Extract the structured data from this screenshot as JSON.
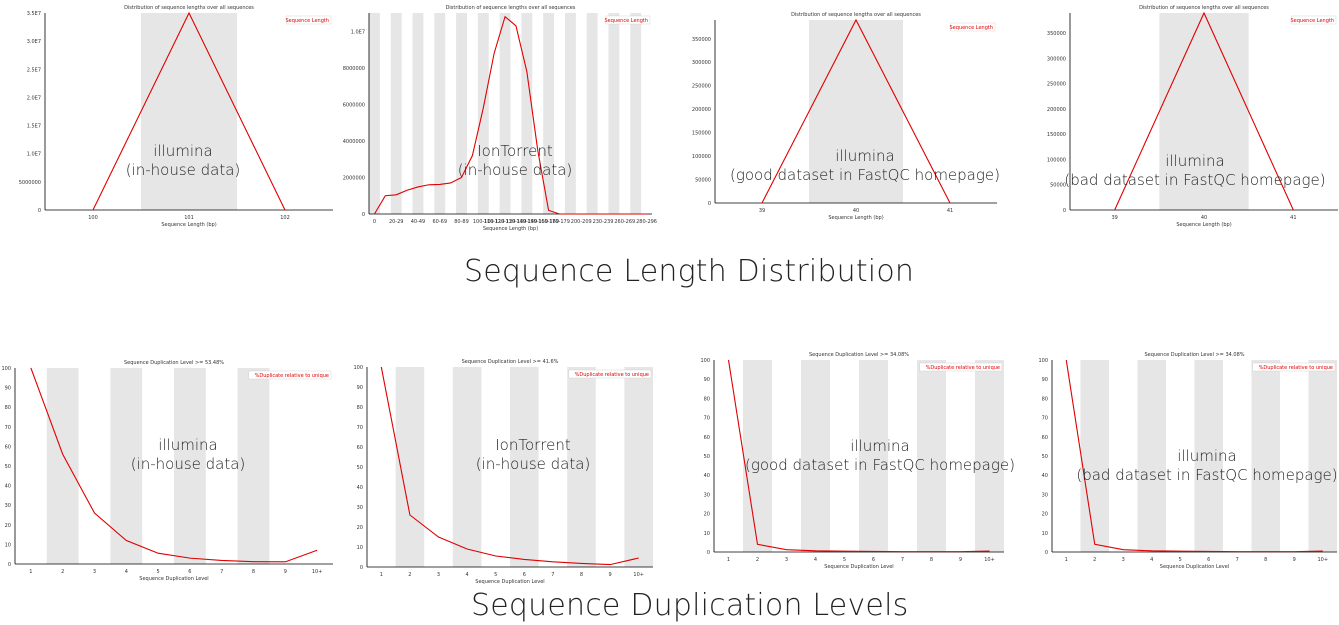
{
  "section_titles": {
    "length": "Sequence Length Distribution",
    "duplication": "Sequence Duplication Levels"
  },
  "chart_data": [
    {
      "id": "len-illumina-inhouse",
      "type": "line",
      "title": "Distribution of sequence lengths over all sequences",
      "xlabel": "Sequence Length (bp)",
      "legend": "Sequence Length",
      "legend_position": "top-right",
      "annotation": [
        "illumina",
        "(in-house data)"
      ],
      "x_categories": [
        "100",
        "101",
        "102"
      ],
      "y_ticks": [
        0,
        5000000,
        10000000,
        15000000,
        20000000,
        25000000,
        30000000,
        35000000
      ],
      "y_tick_labels": [
        "0",
        "5000000",
        "1.0E7",
        "1.5E7",
        "2.0E7",
        "2.5E7",
        "3.0E7",
        "3.5E7"
      ],
      "ylim": [
        0,
        35000000
      ],
      "shaded_bands": [
        1
      ],
      "values": [
        0,
        35000000,
        0
      ]
    },
    {
      "id": "len-iontorrent-inhouse",
      "type": "line",
      "title": "Distribution of sequence lengths over all sequences",
      "xlabel": "Sequence Length (bp)",
      "legend": "Sequence Length",
      "legend_position": "top-right",
      "annotation": [
        "IonTorrent",
        "(in-house data)"
      ],
      "x_categories": [
        "0",
        "",
        "20-29",
        "",
        "40-49",
        "",
        "60-69",
        "",
        "80-89",
        "",
        "100-109",
        "110-119",
        "120-129",
        "130-139",
        "140-149",
        "150-159",
        "160-169",
        "170-179",
        "",
        "200-209",
        "",
        "230-239",
        "",
        "260-269",
        "",
        "280-296"
      ],
      "x_labels_shown": [
        "0",
        "20-29",
        "40-49",
        "60-69",
        "80-89",
        "110-119",
        "140-149",
        "170-179",
        "200-209",
        "230-239",
        "260-269",
        "280-296"
      ],
      "y_ticks": [
        0,
        2000000,
        4000000,
        6000000,
        8000000,
        10000000
      ],
      "y_tick_labels": [
        "0",
        "2000000",
        "4000000",
        "6000000",
        "8000000",
        "1.0E7"
      ],
      "ylim": [
        0,
        11000000
      ],
      "values": [
        0,
        1000000,
        1050000,
        1300000,
        1480000,
        1600000,
        1620000,
        1700000,
        2000000,
        3200000,
        5800000,
        8800000,
        10800000,
        10300000,
        7800000,
        3500000,
        200000,
        0,
        0,
        0,
        0,
        0,
        0,
        0,
        0,
        0
      ]
    },
    {
      "id": "len-illumina-good",
      "type": "line",
      "title": "Distribution of sequence lengths over all sequences",
      "xlabel": "Sequence Length (bp)",
      "legend": "Sequence Length",
      "legend_position": "top-right",
      "annotation": [
        "illumina",
        "(good dataset in FastQC homepage)"
      ],
      "x_categories": [
        "39",
        "40",
        "41"
      ],
      "y_ticks": [
        0,
        50000,
        100000,
        150000,
        200000,
        250000,
        300000,
        350000
      ],
      "y_tick_labels": [
        "0",
        "50000",
        "100000",
        "150000",
        "200000",
        "250000",
        "300000",
        "350000"
      ],
      "ylim": [
        0,
        390000
      ],
      "shaded_bands": [
        1
      ],
      "values": [
        0,
        390000,
        0
      ]
    },
    {
      "id": "len-illumina-bad",
      "type": "line",
      "title": "Distribution of sequence lengths over all sequences",
      "xlabel": "Sequence Length (bp)",
      "legend": "Sequence Length",
      "legend_position": "top-right",
      "annotation": [
        "illumina",
        "(bad dataset in FastQC homepage)"
      ],
      "x_categories": [
        "39",
        "40",
        "41"
      ],
      "y_ticks": [
        0,
        50000,
        100000,
        150000,
        200000,
        250000,
        300000,
        350000
      ],
      "y_tick_labels": [
        "0",
        "50000",
        "100000",
        "150000",
        "200000",
        "250000",
        "300000",
        "350000"
      ],
      "ylim": [
        0,
        390000
      ],
      "shaded_bands": [
        1
      ],
      "values": [
        0,
        390000,
        0
      ]
    },
    {
      "id": "dup-illumina-inhouse",
      "type": "line",
      "title": "Sequence Duplication Level >= 53.48%",
      "xlabel": "Sequence Duplication Level",
      "legend": "%Duplicate relative to unique",
      "legend_position": "top-right",
      "annotation": [
        "illumina",
        "(in-house data)"
      ],
      "x_categories": [
        "1",
        "2",
        "3",
        "4",
        "5",
        "6",
        "7",
        "8",
        "9",
        "10+"
      ],
      "y_ticks": [
        0,
        10,
        20,
        30,
        40,
        50,
        60,
        70,
        80,
        90,
        100
      ],
      "ylim": [
        0,
        100
      ],
      "shaded_bands": [
        1,
        3,
        5,
        7
      ],
      "values": [
        100,
        56,
        26,
        12,
        5.5,
        3,
        1.8,
        1.2,
        1.1,
        7
      ]
    },
    {
      "id": "dup-iontorrent-inhouse",
      "type": "line",
      "title": "Sequence Duplication Level >= 41.6%",
      "xlabel": "Sequence Duplication Level",
      "legend": "%Duplicate relative to unique",
      "legend_position": "top-right",
      "annotation": [
        "IonTorrent",
        "(in-house data)"
      ],
      "x_categories": [
        "1",
        "2",
        "3",
        "4",
        "5",
        "6",
        "7",
        "8",
        "9",
        "10+"
      ],
      "y_ticks": [
        0,
        10,
        20,
        30,
        40,
        50,
        60,
        70,
        80,
        90,
        100
      ],
      "ylim": [
        0,
        100
      ],
      "shaded_bands": [
        1,
        3,
        5,
        7,
        9
      ],
      "values": [
        100,
        26,
        15,
        9,
        5.5,
        3.8,
        2.6,
        1.8,
        1.2,
        4.5
      ]
    },
    {
      "id": "dup-illumina-good",
      "type": "line",
      "title": "Sequence Duplication Level >= 34.08%",
      "xlabel": "Sequence Duplication Level",
      "legend": "%Duplicate relative to unique",
      "legend_position": "top-right",
      "annotation": [
        "illumina",
        "(good dataset in FastQC homepage)"
      ],
      "x_categories": [
        "1",
        "2",
        "3",
        "4",
        "5",
        "6",
        "7",
        "8",
        "9",
        "10+"
      ],
      "y_ticks": [
        0,
        10,
        20,
        30,
        40,
        50,
        60,
        70,
        80,
        90,
        100
      ],
      "ylim": [
        0,
        100
      ],
      "shaded_bands": [
        1,
        3,
        5,
        7,
        9
      ],
      "values": [
        100,
        4,
        1.2,
        0.6,
        0.4,
        0.3,
        0.2,
        0.2,
        0.2,
        0.5
      ]
    },
    {
      "id": "dup-illumina-bad",
      "type": "line",
      "title": "Sequence Duplication Level >= 34.08%",
      "xlabel": "Sequence Duplication Level",
      "legend": "%Duplicate relative to unique",
      "legend_position": "top-right",
      "annotation": [
        "illumina",
        "(bad dataset in FastQC homepage)"
      ],
      "x_categories": [
        "1",
        "2",
        "3",
        "4",
        "5",
        "6",
        "7",
        "8",
        "9",
        "10+"
      ],
      "y_ticks": [
        0,
        10,
        20,
        30,
        40,
        50,
        60,
        70,
        80,
        90,
        100
      ],
      "ylim": [
        0,
        100
      ],
      "shaded_bands": [
        1,
        3,
        5,
        7,
        9
      ],
      "values": [
        100,
        4,
        1.2,
        0.6,
        0.4,
        0.3,
        0.2,
        0.2,
        0.2,
        0.5
      ]
    }
  ]
}
